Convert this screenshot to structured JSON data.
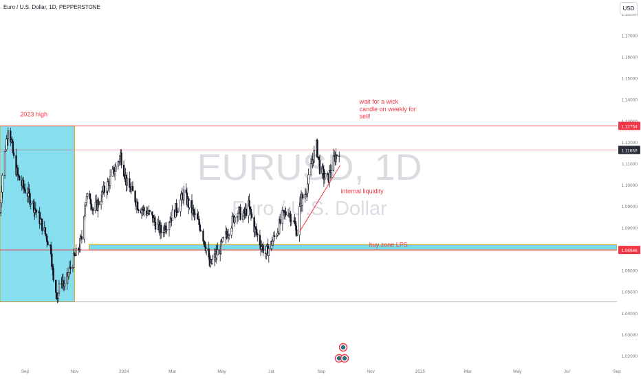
{
  "header": {
    "symbol_title": "Euro / U.S. Dollar, 1D, PEPPERSTONE",
    "currency": "USD"
  },
  "watermark": {
    "ticker": "EURUSD, 1D",
    "name": "Euro / U.S. Dollar"
  },
  "colors": {
    "up": "#089981",
    "down": "#f23645",
    "candle": "#131722",
    "zone": "#5fd3ea",
    "zone_border": "#e0a800",
    "level_line": "#f23645",
    "annotation": "#f23645",
    "axis_text": "#787b86",
    "grid": "#f0f3fa"
  },
  "chart_data": {
    "type": "candlestick",
    "x_range": [
      "2023-08-01",
      "2025-09-01"
    ],
    "y_range": [
      1.0155,
      1.1865
    ],
    "y_ticks": [
      "1.18000",
      "1.17000",
      "1.16000",
      "1.15000",
      "1.14000",
      "1.13000",
      "1.12000",
      "1.11000",
      "1.10000",
      "1.09000",
      "1.08000",
      "1.07000",
      "1.06000",
      "1.05000",
      "1.04000",
      "1.03000",
      "1.02000"
    ],
    "x_ticks": [
      {
        "date": "2023-09-01",
        "label": "Sep"
      },
      {
        "date": "2023-11-01",
        "label": "Nov"
      },
      {
        "date": "2024-01-01",
        "label": "2024"
      },
      {
        "date": "2024-03-01",
        "label": "Mar"
      },
      {
        "date": "2024-05-01",
        "label": "May"
      },
      {
        "date": "2024-07-01",
        "label": "Jul"
      },
      {
        "date": "2024-09-01",
        "label": "Sep"
      },
      {
        "date": "2024-11-01",
        "label": "Nov"
      },
      {
        "date": "2025-01-01",
        "label": "2025"
      },
      {
        "date": "2025-03-01",
        "label": "Mar"
      },
      {
        "date": "2025-05-01",
        "label": "May"
      },
      {
        "date": "2025-07-01",
        "label": "Jul"
      },
      {
        "date": "2025-09-01",
        "label": "Sep"
      }
    ],
    "price_path": [
      {
        "date": "2023-08-01",
        "close": 1.087
      },
      {
        "date": "2023-08-04",
        "close": 1.105
      },
      {
        "date": "2023-08-08",
        "close": 1.118
      },
      {
        "date": "2023-08-11",
        "close": 1.1275
      },
      {
        "date": "2023-08-15",
        "close": 1.12
      },
      {
        "date": "2023-08-18",
        "close": 1.112
      },
      {
        "date": "2023-08-23",
        "close": 1.104
      },
      {
        "date": "2023-08-28",
        "close": 1.1
      },
      {
        "date": "2023-09-04",
        "close": 1.096
      },
      {
        "date": "2023-09-12",
        "close": 1.09
      },
      {
        "date": "2023-09-20",
        "close": 1.083
      },
      {
        "date": "2023-09-28",
        "close": 1.075
      },
      {
        "date": "2023-10-03",
        "close": 1.07
      },
      {
        "date": "2023-10-06",
        "close": 1.054
      },
      {
        "date": "2023-10-11",
        "close": 1.048
      },
      {
        "date": "2023-10-16",
        "close": 1.056
      },
      {
        "date": "2023-10-20",
        "close": 1.052
      },
      {
        "date": "2023-10-26",
        "close": 1.06
      },
      {
        "date": "2023-10-31",
        "close": 1.065
      },
      {
        "date": "2023-11-06",
        "close": 1.07
      },
      {
        "date": "2023-11-10",
        "close": 1.075
      },
      {
        "date": "2023-11-14",
        "close": 1.092
      },
      {
        "date": "2023-11-20",
        "close": 1.095
      },
      {
        "date": "2023-11-24",
        "close": 1.088
      },
      {
        "date": "2023-11-30",
        "close": 1.091
      },
      {
        "date": "2023-12-06",
        "close": 1.096
      },
      {
        "date": "2023-12-12",
        "close": 1.1
      },
      {
        "date": "2023-12-18",
        "close": 1.105
      },
      {
        "date": "2023-12-22",
        "close": 1.108
      },
      {
        "date": "2023-12-28",
        "close": 1.114
      },
      {
        "date": "2024-01-05",
        "close": 1.1
      },
      {
        "date": "2024-01-12",
        "close": 1.096
      },
      {
        "date": "2024-01-19",
        "close": 1.09
      },
      {
        "date": "2024-01-26",
        "close": 1.088
      },
      {
        "date": "2024-02-02",
        "close": 1.086
      },
      {
        "date": "2024-02-09",
        "close": 1.082
      },
      {
        "date": "2024-02-16",
        "close": 1.078
      },
      {
        "date": "2024-02-23",
        "close": 1.082
      },
      {
        "date": "2024-03-01",
        "close": 1.086
      },
      {
        "date": "2024-03-08",
        "close": 1.09
      },
      {
        "date": "2024-03-15",
        "close": 1.096
      },
      {
        "date": "2024-03-22",
        "close": 1.09
      },
      {
        "date": "2024-03-29",
        "close": 1.085
      },
      {
        "date": "2024-04-05",
        "close": 1.08
      },
      {
        "date": "2024-04-12",
        "close": 1.07
      },
      {
        "date": "2024-04-16",
        "close": 1.062
      },
      {
        "date": "2024-04-22",
        "close": 1.066
      },
      {
        "date": "2024-04-29",
        "close": 1.07
      },
      {
        "date": "2024-05-06",
        "close": 1.076
      },
      {
        "date": "2024-05-13",
        "close": 1.082
      },
      {
        "date": "2024-05-20",
        "close": 1.088
      },
      {
        "date": "2024-05-27",
        "close": 1.085
      },
      {
        "date": "2024-06-03",
        "close": 1.09
      },
      {
        "date": "2024-06-10",
        "close": 1.08
      },
      {
        "date": "2024-06-17",
        "close": 1.073
      },
      {
        "date": "2024-06-24",
        "close": 1.068
      },
      {
        "date": "2024-07-01",
        "close": 1.072
      },
      {
        "date": "2024-07-08",
        "close": 1.078
      },
      {
        "date": "2024-07-15",
        "close": 1.085
      },
      {
        "date": "2024-07-22",
        "close": 1.088
      },
      {
        "date": "2024-07-29",
        "close": 1.082
      },
      {
        "date": "2024-08-02",
        "close": 1.078
      },
      {
        "date": "2024-08-06",
        "close": 1.092
      },
      {
        "date": "2024-08-12",
        "close": 1.096
      },
      {
        "date": "2024-08-16",
        "close": 1.102
      },
      {
        "date": "2024-08-21",
        "close": 1.112
      },
      {
        "date": "2024-08-26",
        "close": 1.118
      },
      {
        "date": "2024-08-30",
        "close": 1.108
      },
      {
        "date": "2024-09-04",
        "close": 1.104
      },
      {
        "date": "2024-09-09",
        "close": 1.102
      },
      {
        "date": "2024-09-13",
        "close": 1.108
      },
      {
        "date": "2024-09-18",
        "close": 1.113
      },
      {
        "date": "2024-09-23",
        "close": 1.1163
      }
    ],
    "horizontal_levels": [
      {
        "price": 1.12754,
        "label": "1.12754",
        "style": "solid-red"
      },
      {
        "price": 1.1163,
        "label": "1.11630",
        "style": "faint-red"
      },
      {
        "price": 1.06946,
        "label": "1.06946",
        "style": "solid-red"
      },
      {
        "price": 1.0452,
        "label": "",
        "style": "gray"
      }
    ],
    "boxes": [
      {
        "name": "2023 range box",
        "x0": "2023-08-01",
        "x1": "2023-11-01",
        "y0": 1.0452,
        "y1": 1.12754
      },
      {
        "name": "buy zone",
        "x0": "2023-11-19",
        "x1": "2025-09-01",
        "y0": 1.06946,
        "y1": 1.072
      }
    ],
    "trendline": {
      "x0": "2024-08-05",
      "y0": 1.078,
      "x1": "2024-09-24",
      "y1": 1.109
    },
    "annotations": [
      {
        "text": "2023 high",
        "date": "2023-08-26",
        "price": 1.132
      },
      {
        "text": "wait for a wick",
        "date": "2024-10-18",
        "price": 1.138
      },
      {
        "text": "candle on weekly for",
        "date": "2024-10-18",
        "price": 1.1345
      },
      {
        "text": "sell!",
        "date": "2024-10-18",
        "price": 1.131
      },
      {
        "text": "internal liquidity",
        "date": "2024-09-25",
        "price": 1.096
      },
      {
        "text": "buy zone LPS",
        "date": "2024-10-30",
        "price": 1.071
      }
    ]
  }
}
